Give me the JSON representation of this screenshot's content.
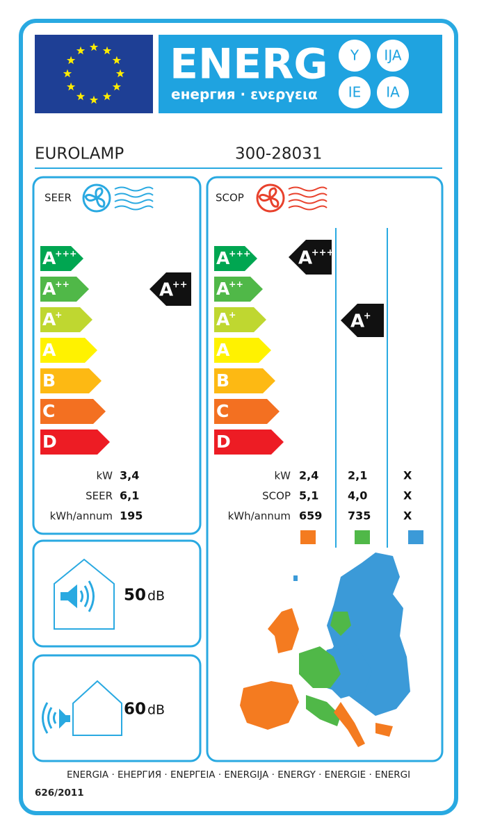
{
  "header": {
    "title": "ENERG",
    "subtitle": "енергия · ενεργεια",
    "suffixes": [
      "Y",
      "IJA",
      "IE",
      "IA"
    ]
  },
  "supplier": "EUROLAMP",
  "model": "300-28031",
  "cooling": {
    "label": "SEER",
    "classes": [
      {
        "letter": "A",
        "plus": "+++"
      },
      {
        "letter": "A",
        "plus": "++"
      },
      {
        "letter": "A",
        "plus": "+"
      },
      {
        "letter": "A"
      },
      {
        "letter": "B"
      },
      {
        "letter": "C"
      },
      {
        "letter": "D"
      }
    ],
    "rating": {
      "letter": "A",
      "plus": "++"
    },
    "rows": [
      {
        "name": "kW",
        "value": "3,4"
      },
      {
        "name": "SEER",
        "value": "6,1"
      },
      {
        "name": "kWh/annum",
        "value": "195"
      }
    ]
  },
  "heating": {
    "label": "SCOP",
    "classes": [
      {
        "letter": "A",
        "plus": "+++"
      },
      {
        "letter": "A",
        "plus": "++"
      },
      {
        "letter": "A",
        "plus": "+"
      },
      {
        "letter": "A"
      },
      {
        "letter": "B"
      },
      {
        "letter": "C"
      },
      {
        "letter": "D"
      }
    ],
    "ratings": [
      {
        "letter": "A",
        "plus": "+++"
      },
      {
        "letter": "A",
        "plus": "+"
      }
    ],
    "rows": [
      {
        "name": "kW",
        "values": [
          "2,4",
          "2,1",
          "X"
        ]
      },
      {
        "name": "SCOP",
        "values": [
          "5,1",
          "4,0",
          "X"
        ]
      },
      {
        "name": "kWh/annum",
        "values": [
          "659",
          "735",
          "X"
        ]
      }
    ]
  },
  "noise_indoor": {
    "value": "50",
    "unit": "dB"
  },
  "noise_outdoor": {
    "value": "60",
    "unit": "dB"
  },
  "footer": "ENERGIA · ЕНЕРГИЯ · ΕΝΕΡΓΕΙΑ · ENERGIJA · ENERGY · ENERGIE · ENERGI",
  "regulation": "626/2011"
}
